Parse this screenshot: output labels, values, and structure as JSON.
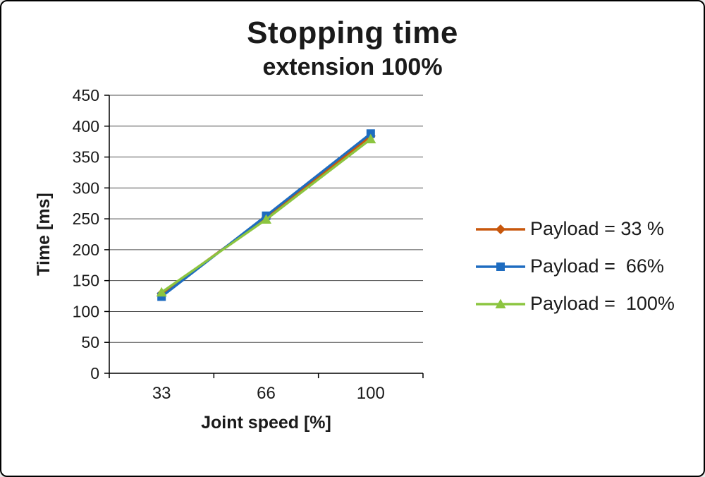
{
  "title": "Stopping time",
  "subtitle": "extension 100%",
  "chart_data": {
    "type": "line",
    "title": "Stopping time",
    "subtitle": "extension 100%",
    "xlabel": "Joint speed [%]",
    "ylabel": "Time [ms]",
    "categories": [
      "33",
      "66",
      "100"
    ],
    "series": [
      {
        "name": "Payload = 33 %",
        "marker": "diamond",
        "color": "#c8570c",
        "values": [
          129,
          252,
          384
        ]
      },
      {
        "name": "Payload =  66%",
        "marker": "square",
        "color": "#1e6cc0",
        "values": [
          124,
          255,
          388
        ]
      },
      {
        "name": "Payload =  100%",
        "marker": "triangle",
        "color": "#8cc540",
        "values": [
          131,
          249,
          379
        ]
      }
    ],
    "ylim": [
      0,
      450
    ],
    "ytick_step": 50,
    "grid": true,
    "legend_position": "right",
    "colors": {
      "gridline": "#4d4d4d",
      "axis": "#000000",
      "text": "#1a1a1a"
    }
  }
}
